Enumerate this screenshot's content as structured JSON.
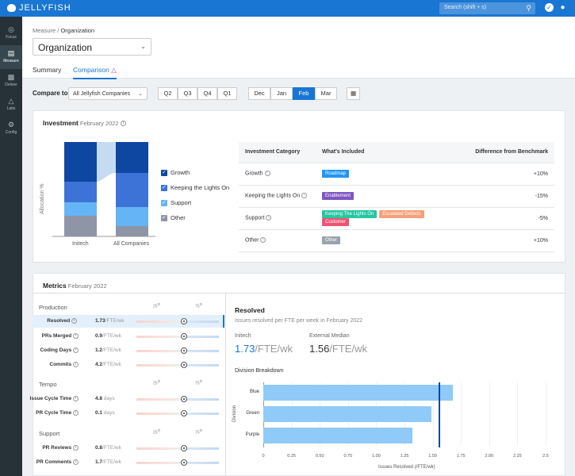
{
  "topbar": {
    "brand": "JELLYFISH",
    "search_placeholder": "Search (shift + s)"
  },
  "sidebar": {
    "items": [
      {
        "label": "Focus",
        "icon": "target-icon"
      },
      {
        "label": "Measure",
        "icon": "bar-chart-icon"
      },
      {
        "label": "Deliver",
        "icon": "truck-icon"
      },
      {
        "label": "Labs",
        "icon": "flask-icon"
      },
      {
        "label": "Config",
        "icon": "gear-icon"
      }
    ]
  },
  "breadcrumb": {
    "parent": "Measure",
    "separator": "/",
    "current": "Organization"
  },
  "org_select": "Organization",
  "tabs": {
    "summary": "Summary",
    "comparison": "Comparison"
  },
  "filters": {
    "compare_label": "Compare to",
    "compare_value": "All Jellyfish Companies",
    "quarters": [
      "Q2",
      "Q3",
      "Q4",
      "Q1"
    ],
    "months": [
      "Dec",
      "Jan",
      "Feb",
      "Mar"
    ],
    "active_month": "Feb"
  },
  "investment": {
    "title": "Investment",
    "period": "February 2022",
    "chart": {
      "ylabel": "Allocation %",
      "bars": [
        "Initech",
        "All Companies"
      ]
    },
    "legend": [
      {
        "label": "Growth",
        "color": "#0d47a1"
      },
      {
        "label": "Keeping the Lights On",
        "color": "#3d73d6"
      },
      {
        "label": "Support",
        "color": "#64b5f6"
      },
      {
        "label": "Other",
        "color": "#8e95a6"
      }
    ],
    "table": {
      "headers": [
        "Investment Category",
        "What's Included",
        "Difference from Benchmark"
      ],
      "rows": [
        {
          "category": "Growth",
          "tags": [
            {
              "text": "Roadmap",
              "color": "#2196f3"
            }
          ],
          "diff": "+10%"
        },
        {
          "category": "Keeping the Lights On",
          "tags": [
            {
              "text": "Enablement",
              "color": "#7e57c2"
            }
          ],
          "diff": "-15%"
        },
        {
          "category": "Support",
          "tags": [
            {
              "text": "Keeping The Lights On",
              "color": "#26c6a0"
            },
            {
              "text": "Escalated Defects",
              "color": "#f4a07b"
            },
            {
              "text": "Customer",
              "color": "#ef5372"
            }
          ],
          "diff": "-5%"
        },
        {
          "category": "Other",
          "tags": [
            {
              "text": "Other",
              "color": "#9aa3ad"
            }
          ],
          "diff": "+10%"
        }
      ]
    }
  },
  "metrics": {
    "title": "Metrics",
    "period": "February 2022",
    "p25": "25",
    "p75": "75",
    "th": "th",
    "groups": [
      {
        "name": "Production",
        "rows": [
          {
            "label": "Resolved",
            "value": "1.73",
            "unit": "/FTE/wk"
          },
          {
            "label": "PRs Merged",
            "value": "0.9",
            "unit": "/FTE/wk"
          },
          {
            "label": "Coding Days",
            "value": "1.2",
            "unit": "/FTE/wk"
          },
          {
            "label": "Commits",
            "value": "4.2",
            "unit": "/FTE/wk"
          }
        ]
      },
      {
        "name": "Tempo",
        "rows": [
          {
            "label": "Issue Cycle Time",
            "value": "4.8",
            "unit": "days"
          },
          {
            "label": "PR Cycle Time",
            "value": "0.1",
            "unit": "days"
          }
        ]
      },
      {
        "name": "Support",
        "rows": [
          {
            "label": "PR Reviews",
            "value": "0.8",
            "unit": "/FTE/wk"
          },
          {
            "label": "PR Comments",
            "value": "1.7",
            "unit": "/FTE/wk"
          }
        ]
      }
    ],
    "detail": {
      "title": "Resolved",
      "subtitle": "Issues resolved per FTE per week in February 2022",
      "initech_label": "Initech",
      "initech_value": "1.73",
      "initech_unit": "/FTE/wk",
      "median_label": "External Median",
      "median_value": "1.56",
      "median_unit": "/FTE/wk",
      "breakdown_title": "Division Breakdown"
    }
  },
  "chart_data": {
    "type": "bar",
    "categories": [
      "Blue",
      "Green",
      "Purple"
    ],
    "values": [
      1.68,
      1.49,
      1.32
    ],
    "reference_line": 1.56,
    "xlabel": "Issues Resolved (/FTE/wk)",
    "ylabel": "Division",
    "xlim": [
      0,
      2.6
    ],
    "xticks": [
      "0",
      "0.25",
      "0.50",
      "0.75",
      "1.00",
      "1.25",
      "1.50",
      "1.75",
      "2.00",
      "2.25",
      "2.5"
    ],
    "grid": true
  }
}
